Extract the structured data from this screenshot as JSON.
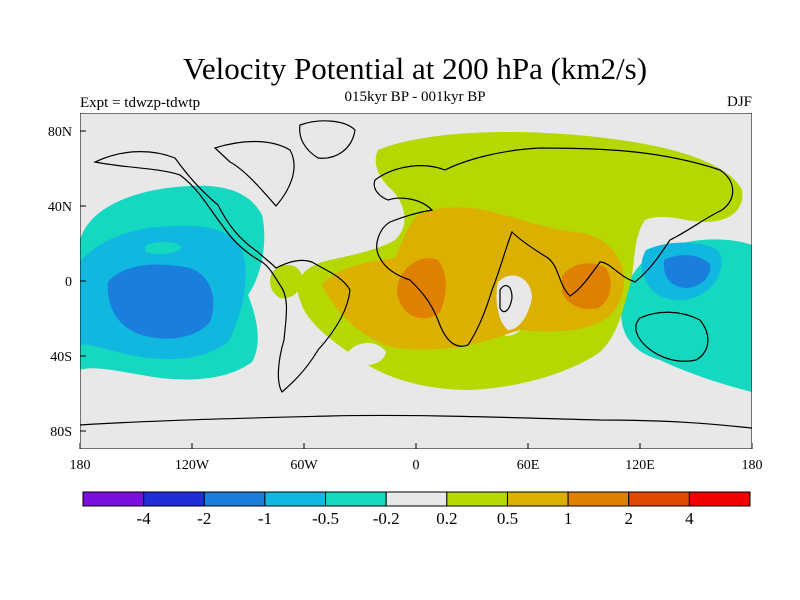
{
  "title": "Velocity Potential at 200 hPa (km2/s)",
  "subtitle": "015kyr BP - 001kyr BP",
  "left_label": "Expt = tdwzp-tdwtp",
  "right_label": "DJF",
  "lat_ticks": [
    "80N",
    "40N",
    "0",
    "40S",
    "80S"
  ],
  "lon_ticks": [
    "180",
    "120W",
    "60W",
    "0",
    "60E",
    "120E",
    "180"
  ],
  "colorbar": {
    "colors": [
      "#7b0fdc",
      "#1f2fd8",
      "#1a7fdc",
      "#10b8e0",
      "#14d8c0",
      "#e8e8e8",
      "#b6d800",
      "#dcb000",
      "#e08000",
      "#e04a00",
      "#f00000"
    ],
    "labels": [
      "-4",
      "-2",
      "-1",
      "-0.5",
      "-0.2",
      "0.2",
      "0.5",
      "1",
      "2",
      "4"
    ]
  },
  "colors": {
    "background": "#e8e8e8",
    "c_neg_0_2": "#14d8c0",
    "c_neg_0_5": "#10b8e0",
    "c_neg_1": "#1a7fdc",
    "c_pos_0_2": "#b6d800",
    "c_pos_0_5": "#dcb000",
    "c_pos_1": "#e08000"
  }
}
